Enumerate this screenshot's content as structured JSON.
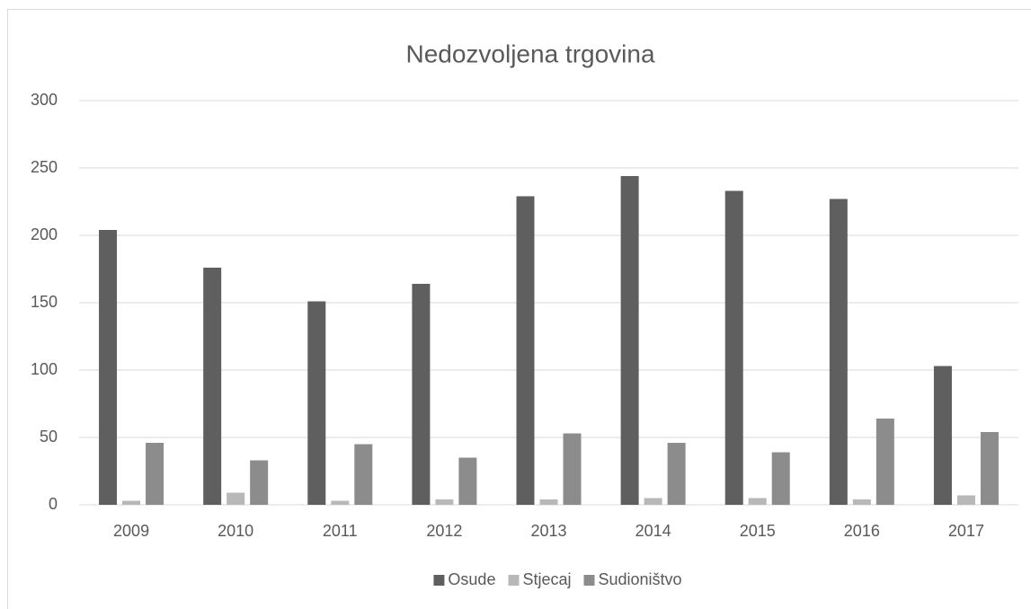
{
  "chart_data": {
    "type": "bar",
    "title": "Nedozvoljena trgovina",
    "categories": [
      "2009",
      "2010",
      "2011",
      "2012",
      "2013",
      "2014",
      "2015",
      "2016",
      "2017"
    ],
    "series": [
      {
        "name": "Osude",
        "color": "#5f5f5f",
        "values": [
          204,
          176,
          151,
          164,
          229,
          244,
          233,
          227,
          103
        ]
      },
      {
        "name": "Stjecaj",
        "color": "#b8b8b8",
        "values": [
          3,
          9,
          3,
          4,
          4,
          5,
          5,
          4,
          7
        ]
      },
      {
        "name": "Sudioništvo",
        "color": "#8c8c8c",
        "values": [
          46,
          33,
          45,
          35,
          53,
          46,
          39,
          64,
          54
        ]
      }
    ],
    "ylim": [
      0,
      300
    ],
    "yticks": [
      0,
      50,
      100,
      150,
      200,
      250,
      300
    ],
    "grid": true,
    "legend": "bottom"
  }
}
